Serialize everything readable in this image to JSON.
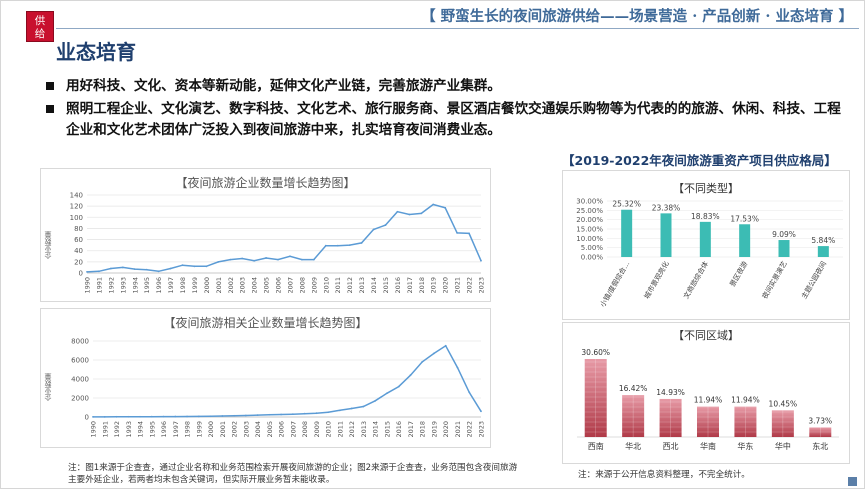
{
  "logo": {
    "line1": "供",
    "line2": "给"
  },
  "header": {
    "title": "【 野蛮生长的夜间旅游供给——场景营造 · 产品创新 · 业态培育 】"
  },
  "section": {
    "title": "业态培育"
  },
  "bullets": [
    {
      "text": "用好科技、文化、资本等新动能，延伸文化产业链，完善旅游产业集群。"
    },
    {
      "text": "照明工程企业、文化演艺、数字科技、文化艺术、旅行服务商、景区酒店餐饮交通娱乐购物等为代表的的旅游、休闲、科技、工程企业和文化艺术团体广泛投入到夜间旅游中来，扎实培育夜间消费业态。"
    }
  ],
  "right_section": {
    "title": "【2019-2022年夜间旅游重资产项目供应格局】"
  },
  "notes": {
    "left": "注：图1来源于企查查，通过企业名称和业务范围检索开展夜间旅游的企业；图2来源于企查查，业务范围包含夜间旅游主要外延企业，若两者均未包含关键词，但实际开展业务暂未能收录。",
    "right": "注：来源于公开信息资料整理，不完全统计。"
  },
  "chart_data": [
    {
      "type": "line",
      "title": "【夜间旅游企业数量增长趋势图】",
      "ylabel": "企业数量",
      "x": [
        "1990",
        "1991",
        "1992",
        "1993",
        "1994",
        "1995",
        "1996",
        "1997",
        "1998",
        "1999",
        "2000",
        "2001",
        "2002",
        "2003",
        "2004",
        "2005",
        "2006",
        "2007",
        "2008",
        "2009",
        "2010",
        "2011",
        "2012",
        "2013",
        "2014",
        "2015",
        "2016",
        "2017",
        "2018",
        "2019",
        "2020",
        "2021",
        "2022",
        "2023"
      ],
      "values": [
        2,
        3,
        8,
        10,
        7,
        6,
        3,
        8,
        14,
        12,
        12,
        20,
        24,
        26,
        22,
        27,
        24,
        30,
        24,
        24,
        49,
        49,
        50,
        54,
        78,
        86,
        110,
        105,
        107,
        123,
        117,
        72,
        71,
        22
      ],
      "ylim": [
        0,
        140
      ],
      "yticks": [
        0,
        20,
        40,
        60,
        80,
        100,
        120,
        140
      ],
      "color": "#5b9bd5",
      "grid": true
    },
    {
      "type": "line",
      "title": "【夜间旅游相关企业数量增长趋势图】",
      "ylabel": "企业数量",
      "x": [
        "1990",
        "1991",
        "1992",
        "1993",
        "1994",
        "1995",
        "1996",
        "1997",
        "1998",
        "1999",
        "2000",
        "2001",
        "2002",
        "2003",
        "2004",
        "2005",
        "2006",
        "2007",
        "2008",
        "2009",
        "2010",
        "2011",
        "2012",
        "2013",
        "2014",
        "2015",
        "2016",
        "2017",
        "2018",
        "2019",
        "2020",
        "2021",
        "2022",
        "2023"
      ],
      "values": [
        10,
        15,
        20,
        25,
        30,
        35,
        40,
        45,
        50,
        60,
        80,
        100,
        130,
        160,
        200,
        240,
        260,
        300,
        350,
        400,
        500,
        700,
        900,
        1100,
        1700,
        2500,
        3200,
        4400,
        5800,
        6700,
        7500,
        5200,
        2600,
        600
      ],
      "ylim": [
        0,
        8000
      ],
      "yticks": [
        0,
        2000,
        4000,
        6000,
        8000
      ],
      "color": "#5b9bd5",
      "grid": true
    },
    {
      "type": "bar",
      "title": "【不同类型】",
      "categories": [
        "小镇/度假综合…",
        "城市景观亮化",
        "文商旅综合体",
        "景区夜游",
        "夜间实景演艺",
        "主题公园夜间"
      ],
      "values": [
        25.32,
        23.38,
        18.83,
        17.53,
        9.09,
        5.84
      ],
      "labels": [
        "25.32%",
        "23.38%",
        "18.83%",
        "17.53%",
        "9.09%",
        "5.84%"
      ],
      "yticks": [
        "0.00%",
        "5.00%",
        "10.00%",
        "15.00%",
        "20.00%",
        "25.00%",
        "30.00%"
      ],
      "ylim": [
        0,
        30
      ],
      "color": "#3cbcb4"
    },
    {
      "type": "bar",
      "title": "【不同区域】",
      "categories": [
        "西南",
        "华北",
        "西北",
        "华南",
        "华东",
        "华中",
        "东北"
      ],
      "values": [
        30.6,
        16.42,
        14.93,
        11.94,
        11.94,
        10.45,
        3.73
      ],
      "labels": [
        "30.60%",
        "16.42%",
        "14.93%",
        "11.94%",
        "11.94%",
        "10.45%",
        "3.73%"
      ],
      "colors": [
        "#b03a48",
        "#e79aa6"
      ]
    }
  ]
}
